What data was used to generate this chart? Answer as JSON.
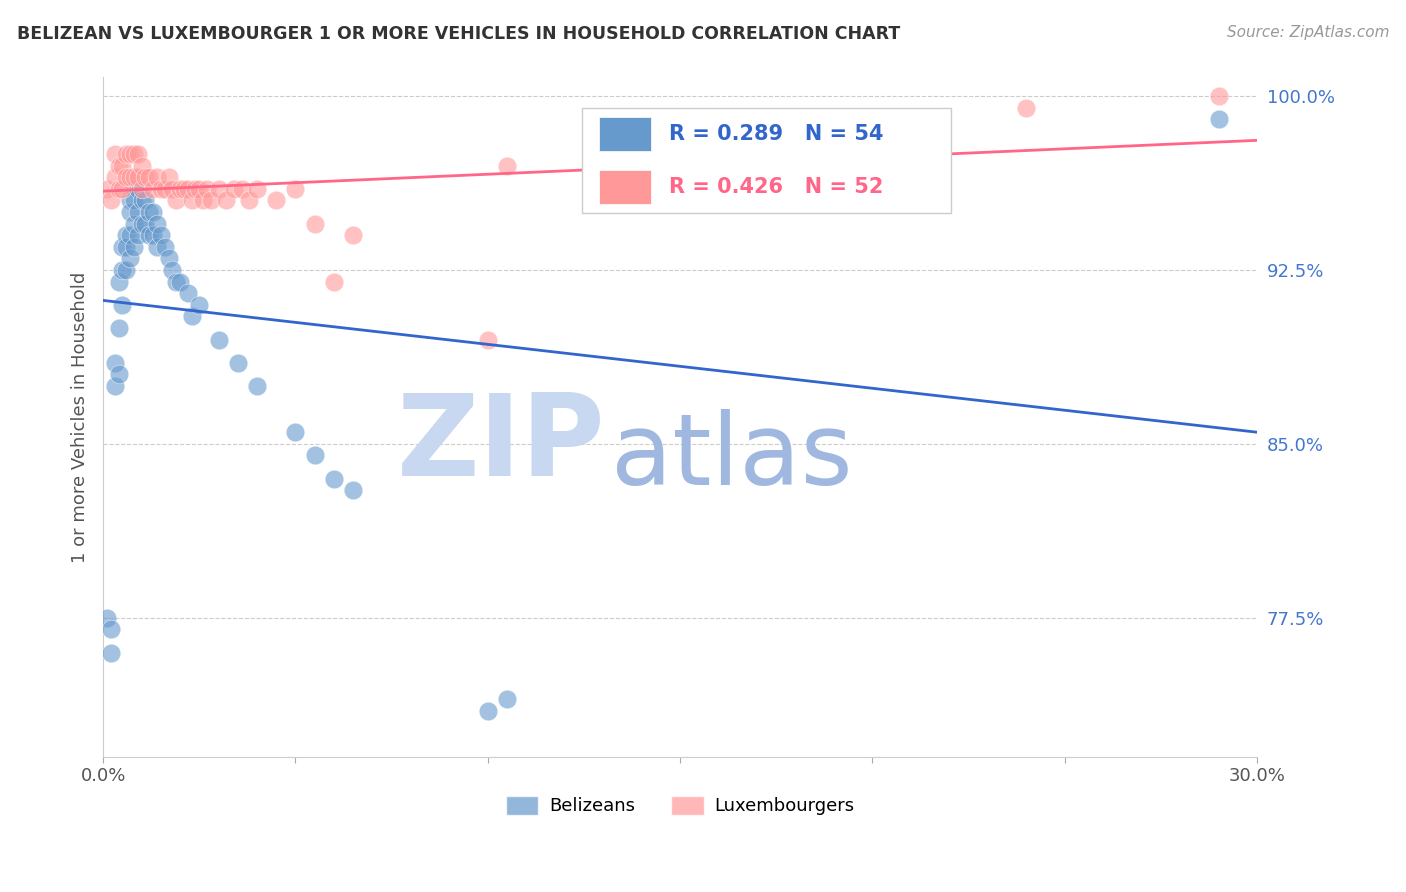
{
  "title": "BELIZEAN VS LUXEMBOURGER 1 OR MORE VEHICLES IN HOUSEHOLD CORRELATION CHART",
  "source": "Source: ZipAtlas.com",
  "ylabel": "1 or more Vehicles in Household",
  "xlim": [
    0.0,
    0.3
  ],
  "ylim": [
    0.715,
    1.008
  ],
  "xticks": [
    0.0,
    0.05,
    0.1,
    0.15,
    0.2,
    0.25,
    0.3
  ],
  "xticklabels": [
    "0.0%",
    "",
    "",
    "",
    "",
    "",
    "30.0%"
  ],
  "yticks": [
    0.775,
    0.85,
    0.925,
    1.0
  ],
  "yticklabels": [
    "77.5%",
    "85.0%",
    "92.5%",
    "100.0%"
  ],
  "belizean_color": "#6699CC",
  "luxembourger_color": "#FF9999",
  "belizean_line_color": "#3366CC",
  "luxembourger_line_color": "#FF6688",
  "legend_r_belizean": "R = 0.289",
  "legend_n_belizean": "N = 54",
  "legend_r_luxembourger": "R = 0.426",
  "legend_n_luxembourger": "N = 52",
  "watermark_zip": "ZIP",
  "watermark_atlas": "atlas",
  "watermark_color_zip": "#C8D8F0",
  "watermark_color_atlas": "#A0B8E0",
  "belizean_x": [
    0.001,
    0.002,
    0.002,
    0.003,
    0.003,
    0.004,
    0.004,
    0.004,
    0.005,
    0.005,
    0.005,
    0.006,
    0.006,
    0.006,
    0.007,
    0.007,
    0.007,
    0.007,
    0.008,
    0.008,
    0.008,
    0.008,
    0.009,
    0.009,
    0.009,
    0.01,
    0.01,
    0.011,
    0.011,
    0.012,
    0.012,
    0.013,
    0.013,
    0.014,
    0.014,
    0.015,
    0.016,
    0.017,
    0.018,
    0.019,
    0.02,
    0.022,
    0.023,
    0.025,
    0.03,
    0.035,
    0.04,
    0.05,
    0.055,
    0.06,
    0.065,
    0.1,
    0.105,
    0.29
  ],
  "belizean_y": [
    0.775,
    0.77,
    0.76,
    0.885,
    0.875,
    0.92,
    0.9,
    0.88,
    0.935,
    0.925,
    0.91,
    0.94,
    0.935,
    0.925,
    0.955,
    0.95,
    0.94,
    0.93,
    0.96,
    0.955,
    0.945,
    0.935,
    0.96,
    0.95,
    0.94,
    0.955,
    0.945,
    0.955,
    0.945,
    0.95,
    0.94,
    0.95,
    0.94,
    0.945,
    0.935,
    0.94,
    0.935,
    0.93,
    0.925,
    0.92,
    0.92,
    0.915,
    0.905,
    0.91,
    0.895,
    0.885,
    0.875,
    0.855,
    0.845,
    0.835,
    0.83,
    0.735,
    0.74,
    0.99
  ],
  "luxembourger_x": [
    0.001,
    0.002,
    0.003,
    0.003,
    0.004,
    0.004,
    0.005,
    0.005,
    0.006,
    0.006,
    0.007,
    0.007,
    0.008,
    0.008,
    0.009,
    0.009,
    0.01,
    0.01,
    0.011,
    0.012,
    0.013,
    0.014,
    0.015,
    0.016,
    0.017,
    0.018,
    0.019,
    0.02,
    0.021,
    0.022,
    0.023,
    0.024,
    0.025,
    0.026,
    0.027,
    0.028,
    0.03,
    0.032,
    0.034,
    0.036,
    0.038,
    0.04,
    0.045,
    0.05,
    0.055,
    0.06,
    0.065,
    0.1,
    0.105,
    0.165,
    0.24,
    0.29
  ],
  "luxembourger_y": [
    0.96,
    0.955,
    0.975,
    0.965,
    0.97,
    0.96,
    0.97,
    0.96,
    0.975,
    0.965,
    0.975,
    0.965,
    0.975,
    0.965,
    0.975,
    0.965,
    0.97,
    0.96,
    0.965,
    0.965,
    0.96,
    0.965,
    0.96,
    0.96,
    0.965,
    0.96,
    0.955,
    0.96,
    0.96,
    0.96,
    0.955,
    0.96,
    0.96,
    0.955,
    0.96,
    0.955,
    0.96,
    0.955,
    0.96,
    0.96,
    0.955,
    0.96,
    0.955,
    0.96,
    0.945,
    0.92,
    0.94,
    0.895,
    0.97,
    0.985,
    0.995,
    1.0
  ]
}
